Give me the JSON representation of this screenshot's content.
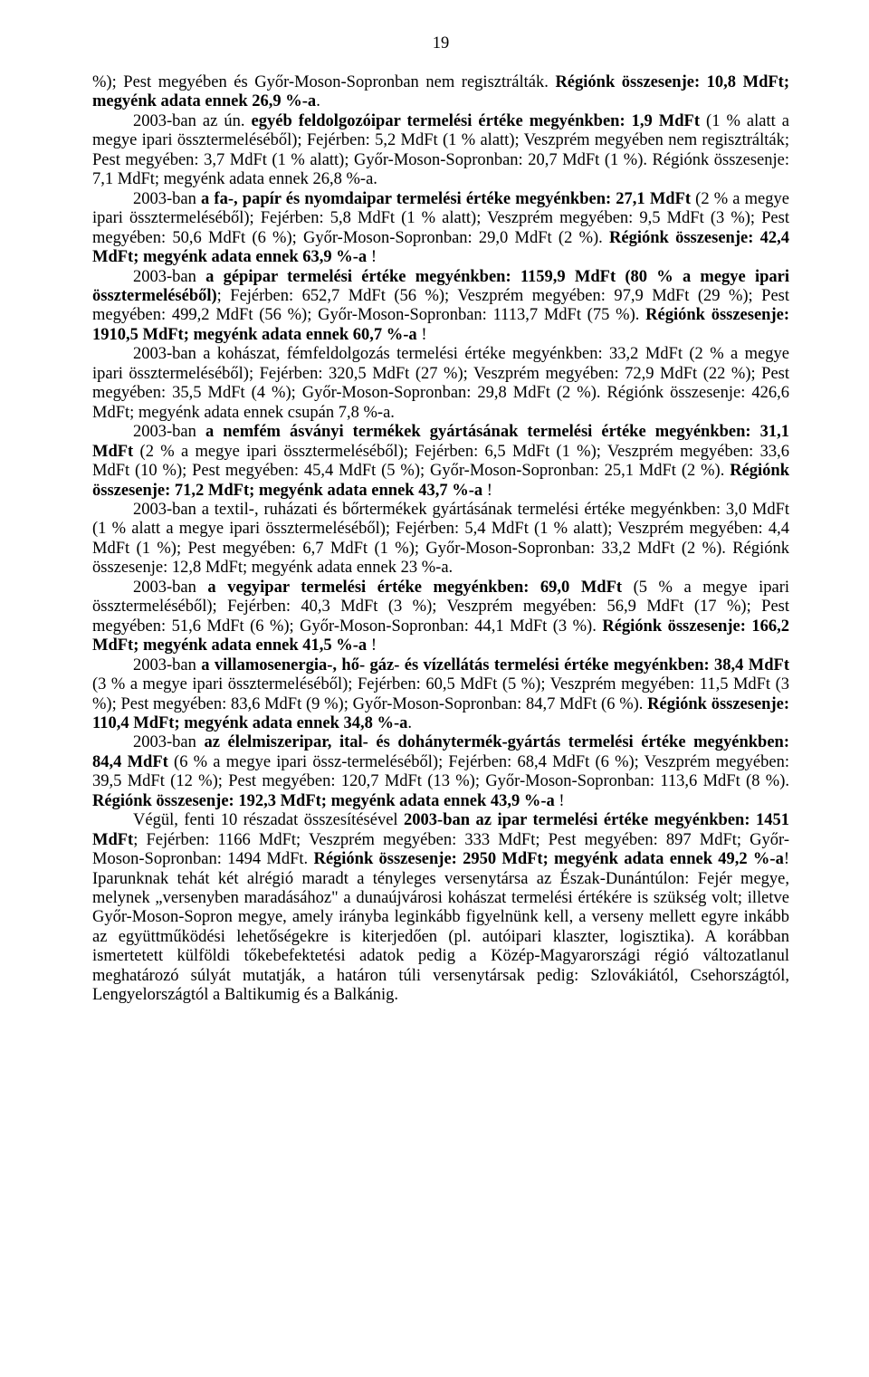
{
  "page_number": "19",
  "p1_a": "%); Pest megyében és Győr-Moson-Sopronban nem regisztrálták. ",
  "p1_b": "Régiónk összesenje: 10,8 MdFt; megyénk adata ennek 26,9 %-a",
  "p1_c": ".",
  "p2_a": "2003-ban az ún. ",
  "p2_b": "egyéb feldolgozóipar termelési értéke megyénkben: 1,9 MdFt",
  "p2_c": " (1 % alatt a megye ipari össztermeléséből); Fejérben: 5,2 MdFt (1 % alatt); Veszprém megyében nem regisztrálták; Pest megyében: 3,7 MdFt (1 % alatt); Győr-Moson-Sopronban: 20,7 MdFt (1 %). Régiónk összesenje: 7,1 MdFt; megyénk adata ennek 26,8 %-a.",
  "p3_a": "2003-ban ",
  "p3_b": "a fa-, papír és nyomdaipar termelési értéke megyénkben: 27,1 MdFt",
  "p3_c": " (2 % a megye ipari össztermeléséből); Fejérben: 5,8 MdFt (1 % alatt); Veszprém megyében: 9,5 MdFt (3 %); Pest megyében: 50,6 MdFt (6 %); Győr-Moson-Sopronban: 29,0 MdFt (2 %). ",
  "p3_d": "Régiónk összesenje: 42,4 MdFt; megyénk adata ennek 63,9 %-a",
  "p3_e": " !",
  "p4_a": "2003-ban ",
  "p4_b": "a gépipar termelési értéke megyénkben: 1159,9 MdFt (80 % a megye ipari össztermeléséből)",
  "p4_c": "; Fejérben: 652,7 MdFt (56 %); Veszprém megyében: 97,9 MdFt (29 %); Pest megyében: 499,2 MdFt (56 %); Győr-Moson-Sopronban: 1113,7 MdFt (75 %). ",
  "p4_d": "Régiónk összesenje: 1910,5 MdFt; megyénk adata ennek 60,7 %-a",
  "p4_e": " !",
  "p5_a": "2003-ban a kohászat, fémfeldolgozás termelési értéke megyénkben: 33,2 MdFt (2 % a megye ipari össztermeléséből); Fejérben: 320,5 MdFt (27 %); Veszprém megyében: 72,9 MdFt (22 %); Pest megyében: 35,5 MdFt (4 %); Győr-Moson-Sopronban: 29,8 MdFt (2 %). Régiónk összesenje: 426,6 MdFt; megyénk adata ennek csupán 7,8 %-a.",
  "p6_a": "2003-ban ",
  "p6_b": "a nemfém ásványi termékek gyártásának termelési értéke megyénkben: 31,1 MdFt",
  "p6_c": " (2 % a megye ipari össztermeléséből); Fejérben: 6,5 MdFt (1 %); Veszprém megyében: 33,6 MdFt (10 %); Pest megyében: 45,4 MdFt (5 %); Győr-Moson-Sopronban: 25,1 MdFt (2 %). ",
  "p6_d": "Régiónk összesenje: 71,2 MdFt; megyénk adata ennek 43,7 %-a",
  "p6_e": " !",
  "p7_a": "2003-ban a textil-, ruházati és bőrtermékek gyártásának termelési értéke megyénkben: 3,0 MdFt (1 % alatt a megye ipari össztermeléséből); Fejérben: 5,4 MdFt (1 % alatt); Veszprém megyében: 4,4 MdFt (1 %); Pest megyében: 6,7 MdFt (1 %); Győr-Moson-Sopronban: 33,2 MdFt (2 %). Régiónk összesenje: 12,8 MdFt; megyénk adata ennek 23 %-a.",
  "p8_a": "2003-ban ",
  "p8_b": "a vegyipar termelési értéke megyénkben: 69,0 MdFt",
  "p8_c": " (5 % a megye ipari össztermeléséből); Fejérben: 40,3 MdFt (3 %); Veszprém megyében: 56,9 MdFt (17 %); Pest megyében: 51,6 MdFt (6 %); Győr-Moson-Sopronban: 44,1 MdFt (3 %). ",
  "p8_d": "Régiónk összesenje: 166,2 MdFt; megyénk adata ennek 41,5 %-a",
  "p8_e": " !",
  "p9_a": "2003-ban ",
  "p9_b": "a villamosenergia-, hő- gáz- és vízellátás termelési értéke megyénkben: 38,4 MdFt",
  "p9_c": " (3 % a megye ipari össztermeléséből); Fejérben: 60,5 MdFt (5 %); Veszprém megyében: 11,5 MdFt (3 %); Pest megyében: 83,6 MdFt (9 %); Győr-Moson-Sopronban: 84,7 MdFt (6 %). ",
  "p9_d": "Régiónk összesenje: 110,4 MdFt; megyénk adata ennek 34,8 %-a",
  "p9_e": ".",
  "p10_a": "2003-ban ",
  "p10_b": "az élelmiszeripar, ital- és dohánytermék-gyártás termelési értéke megyénkben: 84,4 MdFt",
  "p10_c": " (6 % a megye ipari össz-termeléséből); Fejérben: 68,4 MdFt (6 %); Veszprém megyében: 39,5 MdFt (12 %); Pest megyében: 120,7 MdFt (13 %); Győr-Moson-Sopronban: 113,6 MdFt (8 %). ",
  "p10_d": "Régiónk összesenje: 192,3 MdFt; megyénk adata ennek 43,9 %-a",
  "p10_e": " !",
  "p11_a": "Végül, fenti 10 részadat összesítésével ",
  "p11_b": "2003-ban az ipar termelési értéke megyénkben: 1451 MdFt",
  "p11_c": "; Fejérben: 1166 MdFt; Veszprém megyében: 333 MdFt; Pest megyében: 897 MdFt; Győr-Moson-Sopronban: 1494 MdFt. ",
  "p11_d": "Régiónk összesenje: 2950 MdFt; megyénk adata ennek 49,2 %-a",
  "p11_e": "! Iparunknak tehát két alrégió maradt a tényleges versenytársa az Észak-Dunántúlon: Fejér megye, melynek „versenyben maradásához\" a dunaújvárosi kohászat termelési értékére is szükség volt; illetve Győr-Moson-Sopron megye, amely irányba leginkább figyelnünk kell, a verseny mellett egyre inkább az együttműködési lehetőségekre is kiterjedően (pl. autóipari klaszter, logisztika). A korábban ismertetett külföldi tőkebefektetési adatok pedig a Közép-Magyarországi régió változatlanul meghatározó súlyát mutatják, a határon túli versenytársak pedig: Szlovákiától, Csehországtól, Lengyelországtól a Baltikumig és a Balkánig."
}
